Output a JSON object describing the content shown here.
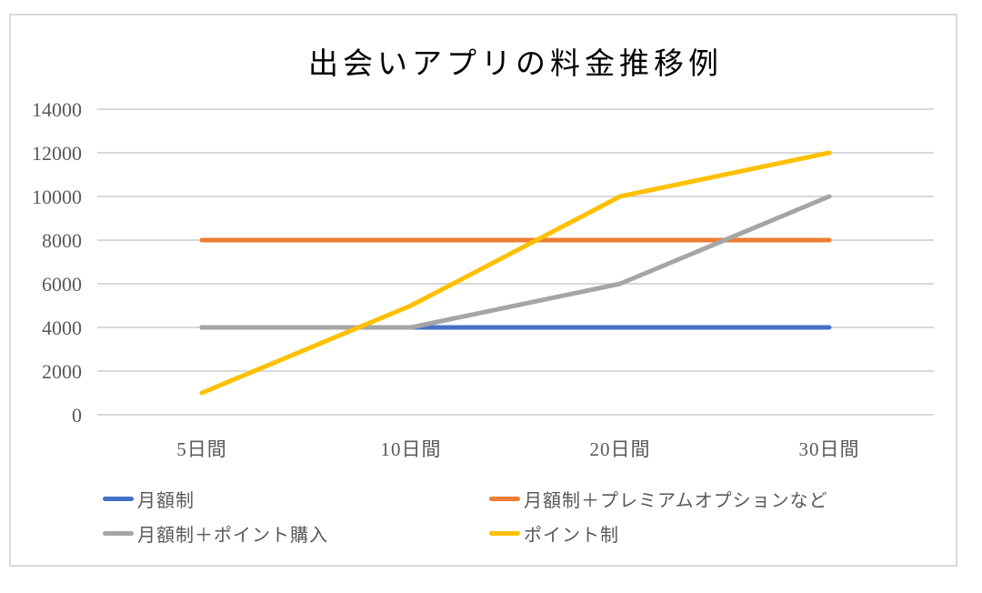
{
  "chart_data": {
    "type": "line",
    "title": "出会いアプリの料金推移例",
    "categories": [
      "5日間",
      "10日間",
      "20日間",
      "30日間"
    ],
    "series": [
      {
        "name": "月額制",
        "color": "#4472C4",
        "values": [
          4000,
          4000,
          4000,
          4000
        ]
      },
      {
        "name": "月額制＋プレミアムオプションなど",
        "color": "#ED7D31",
        "values": [
          8000,
          8000,
          8000,
          8000
        ]
      },
      {
        "name": "月額制＋ポイント購入",
        "color": "#A5A5A5",
        "values": [
          4000,
          4000,
          6000,
          10000
        ]
      },
      {
        "name": "ポイント制",
        "color": "#FFC000",
        "values": [
          1000,
          5000,
          10000,
          12000
        ]
      }
    ],
    "xlabel": "",
    "ylabel": "",
    "ylim": [
      0,
      14000
    ],
    "ytick_step": 2000,
    "ytick_labels": [
      "0",
      "2000",
      "4000",
      "6000",
      "8000",
      "10000",
      "12000",
      "14000"
    ],
    "grid": true,
    "legend_position": "bottom"
  },
  "colors": {
    "text": "#595959",
    "gridline": "#D9D9D9",
    "axis_line": "#D9D9D9",
    "frame_border": "#D9D9D9",
    "background": "#FFFFFF"
  }
}
